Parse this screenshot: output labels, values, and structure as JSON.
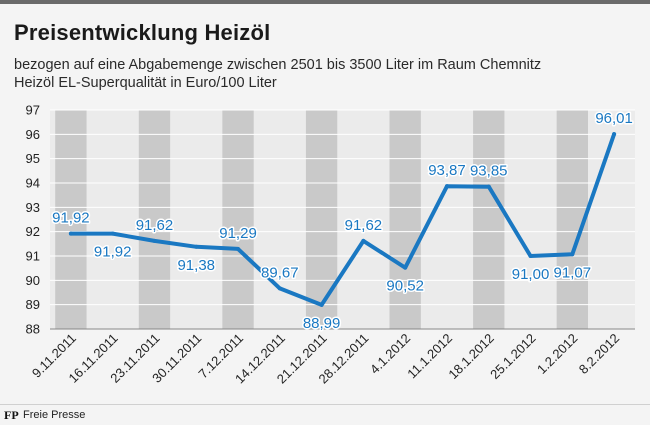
{
  "header": {
    "title": "Preisentwicklung Heizöl",
    "subtitle_line1": "bezogen auf eine Abgabemenge zwischen 2501 bis 3500 Liter im Raum Chemnitz",
    "subtitle_line2": "Heizöl EL-Superqualität in Euro/100 Liter"
  },
  "footer": {
    "logo": "FP",
    "source": "Freie Presse"
  },
  "colors": {
    "line": "#1a78c2",
    "band_dark": "#c9c9c9",
    "band_light": "#ebebeb",
    "background": "#f4f4f4"
  },
  "chart_data": {
    "type": "line",
    "title": "Preisentwicklung Heizöl",
    "xlabel": "",
    "ylabel": "Euro/100 Liter",
    "ylim": [
      88,
      97
    ],
    "yticks": [
      88,
      89,
      90,
      91,
      92,
      93,
      94,
      95,
      96,
      97
    ],
    "grid": true,
    "categories": [
      "9.11.2011",
      "16.11.2011",
      "23.11.2011",
      "30.11.2011",
      "7.12.2011",
      "14.12.2011",
      "21.12.2011",
      "28.12.2011",
      "4.1.2012",
      "11.1.2012",
      "18.1.2012",
      "25.1.2012",
      "1.2.2012",
      "8.2.2012"
    ],
    "values": [
      91.92,
      91.92,
      91.62,
      91.38,
      91.29,
      89.67,
      88.99,
      91.62,
      90.52,
      93.87,
      93.85,
      91.0,
      91.07,
      96.01
    ],
    "labels": [
      "91,92",
      "91,92",
      "91,62",
      "91,38",
      "91,29",
      "89,67",
      "88,99",
      "91,62",
      "90,52",
      "93,87",
      "93,85",
      "91,00",
      "91,07",
      "96,01"
    ]
  }
}
